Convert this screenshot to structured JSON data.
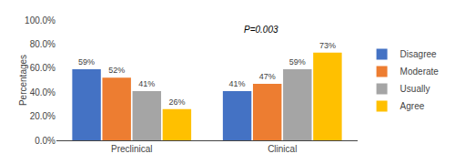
{
  "chart_data": {
    "type": "bar",
    "categories": [
      "Preclinical",
      "Clinical"
    ],
    "series": [
      {
        "name": "Disagree",
        "color": "#4472C4",
        "values": [
          59,
          41
        ],
        "value_labels": [
          "59%",
          "41%"
        ]
      },
      {
        "name": "Moderate",
        "color": "#ED7D31",
        "values": [
          52,
          47
        ],
        "value_labels": [
          "52%",
          "47%"
        ]
      },
      {
        "name": "Usually",
        "color": "#A5A5A5",
        "values": [
          41,
          59
        ],
        "value_labels": [
          "41%",
          "59%"
        ]
      },
      {
        "name": "Agree",
        "color": "#FFC000",
        "values": [
          26,
          73
        ],
        "value_labels": [
          "26%",
          "73%"
        ]
      }
    ],
    "ylabel": "Percentages",
    "ylim": [
      0,
      100
    ],
    "yticks": [
      {
        "value": 0,
        "label": "0.0%"
      },
      {
        "value": 20,
        "label": "20.0%"
      },
      {
        "value": 40,
        "label": "40.0%"
      },
      {
        "value": 60,
        "label": "60.0%"
      },
      {
        "value": 80,
        "label": "80.0%"
      },
      {
        "value": 100,
        "label": "100.0%"
      }
    ],
    "annotation": "P=0.003",
    "data_labels": true,
    "grid": false,
    "legend": "right"
  }
}
